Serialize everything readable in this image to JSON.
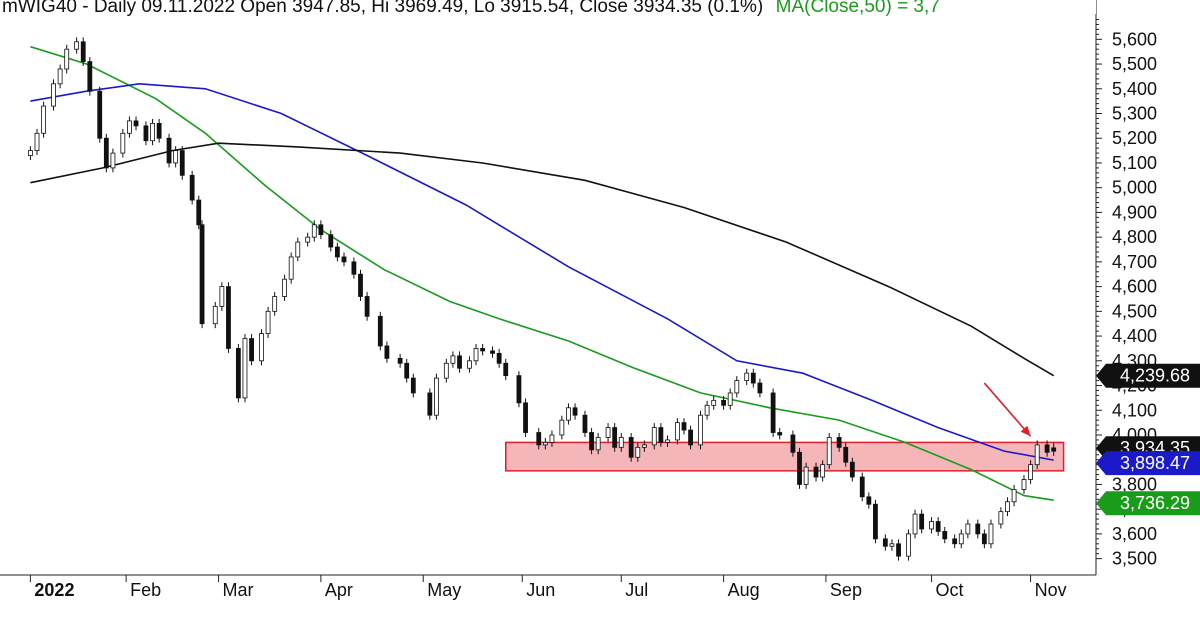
{
  "header": {
    "text": "mWIG40 - Daily 09.11.2022 Open 3947.85, Hi 3969.49, Lo 3915.54, Close 3934.35 (0.1%)",
    "ma_text": "MA(Close,50) = 3,7"
  },
  "chart_data": {
    "type": "candlestick",
    "title": "mWIG40 - Daily",
    "date": "09.11.2022",
    "ohlc": {
      "open": 3947.85,
      "high": 3969.49,
      "low": 3915.54,
      "close": 3934.35,
      "change_pct": 0.1
    },
    "y_axis": {
      "min": 3450,
      "max": 5670,
      "ticks": [
        3500,
        3600,
        3700,
        3800,
        3900,
        4000,
        4100,
        4200,
        4300,
        4400,
        4500,
        4600,
        4700,
        4800,
        4900,
        5000,
        5100,
        5200,
        5300,
        5400,
        5500,
        5600
      ],
      "tick_labels": [
        "3,500",
        "3,600",
        "3,700",
        "3,800",
        "3,900",
        "4,000",
        "4,100",
        "4,200",
        "4,300",
        "4,400",
        "4,500",
        "4,600",
        "4,700",
        "4,800",
        "4,900",
        "5,000",
        "5,100",
        "5,200",
        "5,300",
        "5,400",
        "5,500",
        "5,600"
      ],
      "position": "right"
    },
    "x_axis": {
      "labels": [
        {
          "label": "2022",
          "bold": true,
          "date": "2022-01-03"
        },
        {
          "label": "Feb",
          "bold": false,
          "date": "2022-02-01"
        },
        {
          "label": "Mar",
          "bold": false,
          "date": "2022-03-01"
        },
        {
          "label": "Apr",
          "bold": false,
          "date": "2022-04-01"
        },
        {
          "label": "May",
          "bold": false,
          "date": "2022-05-02"
        },
        {
          "label": "Jun",
          "bold": false,
          "date": "2022-06-01"
        },
        {
          "label": "Jul",
          "bold": false,
          "date": "2022-07-01"
        },
        {
          "label": "Aug",
          "bold": false,
          "date": "2022-08-01"
        },
        {
          "label": "Sep",
          "bold": false,
          "date": "2022-09-01"
        },
        {
          "label": "Oct",
          "bold": false,
          "date": "2022-10-03"
        },
        {
          "label": "Nov",
          "bold": false,
          "date": "2022-11-02"
        }
      ]
    },
    "close_series": [
      [
        "2022-01-03",
        5150
      ],
      [
        "2022-01-05",
        5220
      ],
      [
        "2022-01-07",
        5330
      ],
      [
        "2022-01-10",
        5420
      ],
      [
        "2022-01-12",
        5480
      ],
      [
        "2022-01-14",
        5560
      ],
      [
        "2022-01-17",
        5590
      ],
      [
        "2022-01-19",
        5510
      ],
      [
        "2022-01-21",
        5390
      ],
      [
        "2022-01-24",
        5200
      ],
      [
        "2022-01-26",
        5080
      ],
      [
        "2022-01-28",
        5140
      ],
      [
        "2022-01-31",
        5220
      ],
      [
        "2022-02-02",
        5270
      ],
      [
        "2022-02-04",
        5250
      ],
      [
        "2022-02-07",
        5190
      ],
      [
        "2022-02-09",
        5260
      ],
      [
        "2022-02-11",
        5200
      ],
      [
        "2022-02-14",
        5100
      ],
      [
        "2022-02-16",
        5150
      ],
      [
        "2022-02-18",
        5050
      ],
      [
        "2022-02-21",
        4950
      ],
      [
        "2022-02-23",
        4850
      ],
      [
        "2022-02-24",
        4450
      ],
      [
        "2022-02-28",
        4520
      ],
      [
        "2022-03-02",
        4600
      ],
      [
        "2022-03-04",
        4350
      ],
      [
        "2022-03-07",
        4150
      ],
      [
        "2022-03-09",
        4390
      ],
      [
        "2022-03-11",
        4300
      ],
      [
        "2022-03-14",
        4410
      ],
      [
        "2022-03-16",
        4500
      ],
      [
        "2022-03-18",
        4560
      ],
      [
        "2022-03-21",
        4630
      ],
      [
        "2022-03-23",
        4720
      ],
      [
        "2022-03-25",
        4780
      ],
      [
        "2022-03-28",
        4800
      ],
      [
        "2022-03-30",
        4850
      ],
      [
        "2022-04-01",
        4810
      ],
      [
        "2022-04-04",
        4760
      ],
      [
        "2022-04-06",
        4720
      ],
      [
        "2022-04-08",
        4700
      ],
      [
        "2022-04-11",
        4650
      ],
      [
        "2022-04-13",
        4560
      ],
      [
        "2022-04-15",
        4480
      ],
      [
        "2022-04-19",
        4360
      ],
      [
        "2022-04-21",
        4310
      ],
      [
        "2022-04-25",
        4290
      ],
      [
        "2022-04-27",
        4230
      ],
      [
        "2022-04-29",
        4170
      ],
      [
        "2022-05-04",
        4080
      ],
      [
        "2022-05-06",
        4230
      ],
      [
        "2022-05-09",
        4290
      ],
      [
        "2022-05-11",
        4320
      ],
      [
        "2022-05-13",
        4270
      ],
      [
        "2022-05-16",
        4300
      ],
      [
        "2022-05-18",
        4350
      ],
      [
        "2022-05-20",
        4340
      ],
      [
        "2022-05-23",
        4330
      ],
      [
        "2022-05-25",
        4290
      ],
      [
        "2022-05-27",
        4240
      ],
      [
        "2022-05-31",
        4130
      ],
      [
        "2022-06-02",
        4010
      ],
      [
        "2022-06-06",
        3960
      ],
      [
        "2022-06-08",
        3970
      ],
      [
        "2022-06-10",
        4000
      ],
      [
        "2022-06-13",
        4060
      ],
      [
        "2022-06-15",
        4110
      ],
      [
        "2022-06-17",
        4080
      ],
      [
        "2022-06-20",
        4010
      ],
      [
        "2022-06-22",
        3940
      ],
      [
        "2022-06-24",
        3990
      ],
      [
        "2022-06-27",
        4030
      ],
      [
        "2022-06-29",
        3950
      ],
      [
        "2022-07-01",
        3990
      ],
      [
        "2022-07-04",
        3910
      ],
      [
        "2022-07-06",
        3950
      ],
      [
        "2022-07-08",
        3960
      ],
      [
        "2022-07-11",
        4030
      ],
      [
        "2022-07-13",
        3970
      ],
      [
        "2022-07-15",
        3980
      ],
      [
        "2022-07-18",
        4050
      ],
      [
        "2022-07-20",
        4020
      ],
      [
        "2022-07-22",
        3960
      ],
      [
        "2022-07-25",
        4080
      ],
      [
        "2022-07-27",
        4120
      ],
      [
        "2022-07-29",
        4140
      ],
      [
        "2022-08-01",
        4120
      ],
      [
        "2022-08-03",
        4170
      ],
      [
        "2022-08-05",
        4220
      ],
      [
        "2022-08-08",
        4250
      ],
      [
        "2022-08-10",
        4210
      ],
      [
        "2022-08-12",
        4170
      ],
      [
        "2022-08-16",
        4010
      ],
      [
        "2022-08-18",
        4000
      ],
      [
        "2022-08-22",
        3930
      ],
      [
        "2022-08-24",
        3800
      ],
      [
        "2022-08-26",
        3870
      ],
      [
        "2022-08-29",
        3830
      ],
      [
        "2022-08-31",
        3880
      ],
      [
        "2022-09-02",
        3990
      ],
      [
        "2022-09-05",
        3950
      ],
      [
        "2022-09-07",
        3890
      ],
      [
        "2022-09-09",
        3830
      ],
      [
        "2022-09-12",
        3750
      ],
      [
        "2022-09-14",
        3720
      ],
      [
        "2022-09-16",
        3580
      ],
      [
        "2022-09-19",
        3550
      ],
      [
        "2022-09-21",
        3560
      ],
      [
        "2022-09-23",
        3510
      ],
      [
        "2022-09-26",
        3600
      ],
      [
        "2022-09-28",
        3680
      ],
      [
        "2022-09-30",
        3620
      ],
      [
        "2022-10-03",
        3650
      ],
      [
        "2022-10-05",
        3610
      ],
      [
        "2022-10-07",
        3580
      ],
      [
        "2022-10-10",
        3560
      ],
      [
        "2022-10-12",
        3600
      ],
      [
        "2022-10-14",
        3640
      ],
      [
        "2022-10-17",
        3600
      ],
      [
        "2022-10-19",
        3560
      ],
      [
        "2022-10-21",
        3640
      ],
      [
        "2022-10-24",
        3690
      ],
      [
        "2022-10-26",
        3730
      ],
      [
        "2022-10-28",
        3780
      ],
      [
        "2022-10-31",
        3820
      ],
      [
        "2022-11-02",
        3880
      ],
      [
        "2022-11-04",
        3960
      ],
      [
        "2022-11-07",
        3930
      ],
      [
        "2022-11-09",
        3934.35
      ]
    ],
    "ma_series": [
      {
        "name": "MA(Close,50)",
        "color": "#1a9b1a",
        "points": [
          [
            "2022-01-03",
            5570
          ],
          [
            "2022-01-20",
            5500
          ],
          [
            "2022-02-10",
            5360
          ],
          [
            "2022-02-25",
            5220
          ],
          [
            "2022-03-15",
            5010
          ],
          [
            "2022-04-01",
            4830
          ],
          [
            "2022-04-20",
            4670
          ],
          [
            "2022-05-10",
            4540
          ],
          [
            "2022-05-25",
            4470
          ],
          [
            "2022-06-15",
            4380
          ],
          [
            "2022-07-05",
            4270
          ],
          [
            "2022-07-25",
            4170
          ],
          [
            "2022-08-15",
            4110
          ],
          [
            "2022-09-05",
            4060
          ],
          [
            "2022-09-25",
            3970
          ],
          [
            "2022-10-15",
            3860
          ],
          [
            "2022-10-31",
            3755
          ],
          [
            "2022-11-09",
            3736.29
          ]
        ]
      },
      {
        "name": "",
        "color": "#1a1ac8",
        "points": [
          [
            "2022-01-03",
            5350
          ],
          [
            "2022-01-20",
            5390
          ],
          [
            "2022-02-05",
            5420
          ],
          [
            "2022-02-25",
            5400
          ],
          [
            "2022-03-20",
            5300
          ],
          [
            "2022-04-15",
            5130
          ],
          [
            "2022-05-15",
            4930
          ],
          [
            "2022-06-15",
            4680
          ],
          [
            "2022-07-15",
            4470
          ],
          [
            "2022-08-05",
            4300
          ],
          [
            "2022-08-25",
            4250
          ],
          [
            "2022-09-15",
            4140
          ],
          [
            "2022-10-05",
            4030
          ],
          [
            "2022-10-25",
            3935
          ],
          [
            "2022-11-09",
            3898.47
          ]
        ]
      },
      {
        "name": "",
        "color": "#111111",
        "points": [
          [
            "2022-01-03",
            5020
          ],
          [
            "2022-01-25",
            5080
          ],
          [
            "2022-02-15",
            5150
          ],
          [
            "2022-03-01",
            5180
          ],
          [
            "2022-03-25",
            5165
          ],
          [
            "2022-04-25",
            5140
          ],
          [
            "2022-05-20",
            5100
          ],
          [
            "2022-06-20",
            5030
          ],
          [
            "2022-07-20",
            4920
          ],
          [
            "2022-08-20",
            4780
          ],
          [
            "2022-09-20",
            4600
          ],
          [
            "2022-10-15",
            4440
          ],
          [
            "2022-10-31",
            4310
          ],
          [
            "2022-11-09",
            4239.68
          ]
        ]
      }
    ],
    "price_tags": [
      {
        "label": "4,239.68",
        "value": 4239.68,
        "color": "#111111"
      },
      {
        "label": "3,934.35",
        "value": 3934.35,
        "color": "#111111"
      },
      {
        "label": "3,898.47",
        "value": 3898.47,
        "color": "#1a1ac8"
      },
      {
        "label": "3,736.29",
        "value": 3736.29,
        "color": "#1a9b1a"
      }
    ],
    "support_zone": {
      "from_date": "2022-05-27",
      "to_date": "2022-11-12",
      "low": 3855,
      "high": 3970,
      "fill": "#f4b6b8",
      "stroke": "#e0202a"
    },
    "annotation_arrow": {
      "from": [
        "2022-10-19",
        4210
      ],
      "to": [
        "2022-11-02",
        3995
      ],
      "color": "#e0202a"
    },
    "grid": false,
    "legend": "none"
  }
}
